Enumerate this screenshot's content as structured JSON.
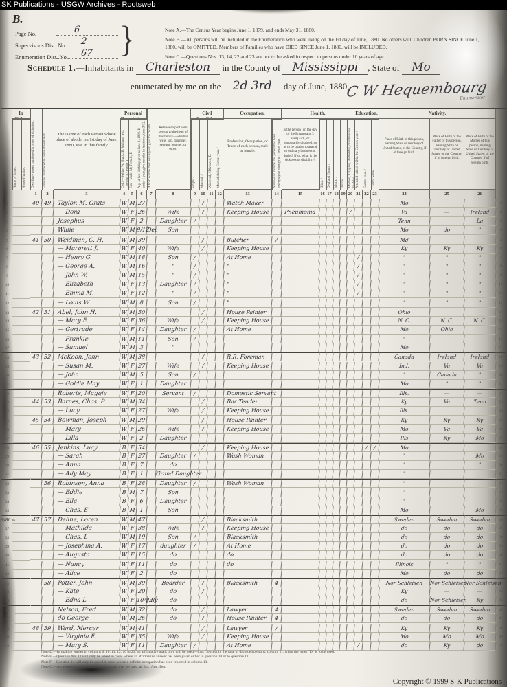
{
  "browser_bar": {
    "title": "SK Publications - USGW Archives - Rootsweb"
  },
  "page_header": {
    "corner_mark": "B.",
    "fields": [
      {
        "label": "Page No.",
        "value": "6"
      },
      {
        "label": "Supervisor's Dist. No.",
        "value": "2"
      },
      {
        "label": "Enumeration Dist. No.",
        "value": "67"
      }
    ],
    "brace": "}",
    "notes": [
      "Note A.—The Census Year begins June 1, 1879, and ends May 31, 1880.",
      "Note B.—All persons will be included in the Enumeration who were living on the 1st day of June, 1880.  No others will.  Children BORN SINCE June 1, 1880, will be OMITTED.  Members of Families who have DIED SINCE June 1, 1880, will be INCLUDED.",
      "Note C.—Questions Nos. 13, 14, 22 and 23 are not to be asked in respect to persons under 10 years of age."
    ],
    "schedule": {
      "prefix": "Schedule 1.",
      "prefix2": "—Inhabitants in",
      "place": "Charleston",
      "mid1": "in the County of",
      "county": "Mississippi",
      "mid2": ", State of",
      "state": "Mo",
      "line2_prefix": "enumerated by me on the",
      "date": "2d 3rd",
      "line2_suffix": "day of June, 1880.",
      "signature": "C W Hequembourg",
      "signature_caption": "Enumerator"
    }
  },
  "table": {
    "groups": {
      "in_cities": "In Cities.",
      "personal_desc": "Personal Description.",
      "civil": "Civil Condition.",
      "occupation": "Occupation.",
      "health": "Health.",
      "education": "Education.",
      "nativity": "Nativity."
    },
    "columns": {
      "street": "Name of Street.",
      "house": "House Number.",
      "dwelling": "Dwelling-houses numbered in order of visitation.",
      "family": "Families numbered in order of visitation.",
      "name": "The Name of each Person whose place of abode, on 1st day of June, 1880, was in this family.",
      "color": "Color—White, W; Black, B; Mulatto, Mu; Chinese, C; Indian, I.",
      "sex": "Sex—Male, M; Female, F.",
      "age": "Age at last birthday prior to June 1, 1880. If under 1 year, give months in fractions, thus 3/12.",
      "month": "If born within the Census year, give the month.",
      "relation": "Relationship of each person to the head of this family—whether wife, son, daughter, servant, boarder, or other.",
      "single": "Single. /",
      "married": "Married. /",
      "widowed": "Widowed, / Divorced, D.",
      "mcy": "Married during Census year. /",
      "occupation": "Profession, Occupation, or Trade of each person, male or female.",
      "unemployed": "Number of months this person has been unemployed during the Census year.",
      "sickness": "Is the person [on the day of the Enumerator's visit] sick, or temporarily disabled, so as to be unable to attend to ordinary business or duties?  If so, what is the sickness or disability?",
      "blind": "Blind. /",
      "deaf": "Deaf and Dumb. /",
      "idiotic": "Idiotic. /",
      "insane": "Insane. /",
      "maimed": "Maimed, Crippled, Bedridden, or otherwise disabled. /",
      "school": "Attended school within the Census year. /",
      "read": "Cannot read. /",
      "write": "Cannot write. /",
      "pob": "Place of Birth of this person, naming State or Territory of United States, or the Country, if of foreign birth.",
      "pob_father": "Place of Birth of the Father of this person, naming State or Territory of United States, or the Country, if of foreign birth.",
      "pob_mother": "Place of Birth of the Mother of this person, naming State or Territory of United States, or the Country, if of foreign birth."
    },
    "col_numbers": [
      "",
      "",
      "",
      "1",
      "2",
      "3",
      "4",
      "5",
      "6",
      "7",
      "8",
      "9",
      "10",
      "11",
      "12",
      "13",
      "14",
      "15",
      "16",
      "17",
      "18",
      "19",
      "20",
      "21",
      "22",
      "23",
      "24",
      "25",
      "26",
      ""
    ],
    "rows": [
      {
        "ln": "1",
        "d": "40",
        "f": "49",
        "name": "Taylor, M. Grats",
        "c": "W",
        "s": "M",
        "a": "27",
        "mr": "/",
        "occ": "Watch Maker",
        "pob": "Mo"
      },
      {
        "ln": "2",
        "name": "— Dora",
        "c": "W",
        "s": "F",
        "a": "26",
        "rel": "Wife",
        "mr": "/",
        "occ": "Keeping House",
        "sick": "Pneumonia",
        "h": "/",
        "pob": "Va",
        "pf": "—",
        "pm": "Ireland"
      },
      {
        "ln": "3",
        "name": "Josephus",
        "c": "W",
        "s": "F",
        "a": "2",
        "rel": "Daughter",
        "sg": "/",
        "pob": "Tenn",
        "pm": "La"
      },
      {
        "ln": "4",
        "name": "Willie",
        "c": "W",
        "s": "M",
        "a": "9/12",
        "mo": "Dec",
        "rel": "Son",
        "pob": "Mo",
        "pf": "do",
        "pm": "\""
      },
      {
        "ln": "5",
        "d": "41",
        "f": "50",
        "name": "Weidman, C. H.",
        "c": "W",
        "s": "M",
        "a": "39",
        "mr": "/",
        "occ": "Butcher",
        "un": "/",
        "pob": "Md",
        "heavy": true
      },
      {
        "ln": "6",
        "name": "— Margrett J.",
        "c": "W",
        "s": "F",
        "a": "40",
        "rel": "Wife",
        "mr": "/",
        "occ": "Keeping House",
        "pob": "Ky",
        "pf": "Ky",
        "pm": "Ky"
      },
      {
        "ln": "7",
        "name": "— Henry G.",
        "c": "W",
        "s": "M",
        "a": "18",
        "rel": "Son",
        "sg": "/",
        "occ": "At Home",
        "sch": "/",
        "pob": "\"",
        "pf": "\"",
        "pm": "\""
      },
      {
        "ln": "8",
        "name": "— George A.",
        "c": "W",
        "s": "M",
        "a": "16",
        "rel": "\"",
        "sg": "/",
        "occ": "\"",
        "sch": "/",
        "pob": "\"",
        "pf": "\"",
        "pm": "\""
      },
      {
        "ln": "9",
        "name": "— John W.",
        "c": "W",
        "s": "M",
        "a": "15",
        "rel": "\"",
        "sg": "/",
        "occ": "\"",
        "sch": "/",
        "pob": "\"",
        "pf": "\"",
        "pm": "\""
      },
      {
        "ln": "10",
        "name": "— Elizabeth",
        "c": "W",
        "s": "F",
        "a": "13",
        "rel": "Daughter",
        "sg": "/",
        "occ": "\"",
        "sch": "/",
        "pob": "\"",
        "pf": "\"",
        "pm": "\""
      },
      {
        "ln": "11",
        "name": "— Emma M.",
        "c": "W",
        "s": "F",
        "a": "12",
        "rel": "\"",
        "sg": "/",
        "occ": "\"",
        "sch": "/",
        "pob": "\"",
        "pf": "\"",
        "pm": "\""
      },
      {
        "ln": "12",
        "name": "— Louis W.",
        "c": "W",
        "s": "M",
        "a": "8",
        "rel": "Son",
        "sg": "/",
        "occ": "\"",
        "pob": "\"",
        "pf": "\"",
        "pm": "\""
      },
      {
        "ln": "13",
        "d": "42",
        "f": "51",
        "name": "Abel, John H.",
        "c": "W",
        "s": "M",
        "a": "50",
        "mr": "/",
        "occ": "House Painter",
        "pob": "Ohio",
        "heavy": true
      },
      {
        "ln": "14",
        "name": "— Mary E.",
        "c": "W",
        "s": "F",
        "a": "36",
        "rel": "Wife",
        "mr": "/",
        "occ": "Keeping House",
        "pob": "N. C.",
        "pf": "N. C.",
        "pm": "N. C."
      },
      {
        "ln": "15",
        "name": "— Gertrude",
        "c": "W",
        "s": "F",
        "a": "14",
        "rel": "Daughter",
        "sg": "/",
        "occ": "At Home",
        "pob": "Mo",
        "pf": "Ohio"
      },
      {
        "ln": "16",
        "name": "— Frankie",
        "c": "W",
        "s": "M",
        "a": "11",
        "rel": "Son",
        "sg": "/",
        "pob": "\"",
        "heavy": true
      },
      {
        "ln": "17",
        "name": "— Samuel",
        "c": "W",
        "s": "M",
        "a": "3",
        "rel": "\"",
        "pob": "Mo"
      },
      {
        "ln": "18",
        "d": "43",
        "f": "52",
        "name": "McKoon, John",
        "c": "W",
        "s": "M",
        "a": "38",
        "mr": "/",
        "occ": "R.R. Foreman",
        "pob": "Canada",
        "pf": "Ireland",
        "pm": "Ireland",
        "heavy": true
      },
      {
        "ln": "19",
        "name": "— Susan M.",
        "c": "W",
        "s": "F",
        "a": "27",
        "rel": "Wife",
        "mr": "/",
        "occ": "Keeping House",
        "pob": "Ind.",
        "pf": "Va",
        "pm": "Va"
      },
      {
        "ln": "20",
        "name": "— John",
        "c": "W",
        "s": "M",
        "a": "5",
        "rel": "Son",
        "sg": "/",
        "pob": "\"",
        "pf": "Canada",
        "pm": "\""
      },
      {
        "ln": "21",
        "name": "— Goldie May",
        "c": "W",
        "s": "F",
        "a": "1",
        "rel": "Daughter",
        "pob": "Mo",
        "pf": "\"",
        "pm": "\""
      },
      {
        "ln": "22",
        "name": "Roberts, Maggie",
        "c": "W",
        "s": "F",
        "a": "20",
        "rel": "Servant",
        "sg": "/",
        "occ": "Domestic Servant",
        "pob": "Ills.",
        "pf": "—",
        "pm": "—",
        "heavy": true
      },
      {
        "ln": "23",
        "d": "44",
        "f": "53",
        "name": "Barnes, Chas. P.",
        "c": "W",
        "s": "M",
        "a": "34",
        "mr": "/",
        "occ": "Bar Tender",
        "pob": "Ky",
        "pf": "Va",
        "pm": "Tenn"
      },
      {
        "ln": "24",
        "name": "— Lucy",
        "c": "W",
        "s": "F",
        "a": "27",
        "rel": "Wife",
        "mr": "/",
        "occ": "Keeping House",
        "pob": "Ills."
      },
      {
        "ln": "25",
        "d": "45",
        "f": "54",
        "name": "Bowman, Joseph",
        "c": "W",
        "s": "M",
        "a": "29",
        "mr": "/",
        "occ": "House Painter",
        "pob": "Ky",
        "pf": "Ky",
        "pm": "Ky",
        "heavy": true
      },
      {
        "ln": "26",
        "name": "— Mary",
        "c": "W",
        "s": "F",
        "a": "26",
        "rel": "Wife",
        "mr": "/",
        "occ": "Keeping House",
        "pob": "Mo",
        "pf": "Va",
        "pm": "Va"
      },
      {
        "ln": "27",
        "name": "— Lilla",
        "c": "W",
        "s": "F",
        "a": "2",
        "rel": "Daughter",
        "pob": "Ills",
        "pf": "Ky",
        "pm": "Mo"
      },
      {
        "ln": "28",
        "d": "46",
        "f": "55",
        "name": "Jenkins, Lucy",
        "c": "B",
        "s": "F",
        "a": "54",
        "mr": "/",
        "occ": "Keeping House",
        "rd": "/",
        "wr": "/",
        "pob": "Mo",
        "heavy": true
      },
      {
        "ln": "29",
        "name": "— Sarah",
        "c": "B",
        "s": "F",
        "a": "27",
        "rel": "Daughter",
        "sg": "/",
        "occ": "Wash Woman",
        "pob": "\"",
        "pm": "Mo"
      },
      {
        "ln": "30",
        "name": "— Anna",
        "c": "B",
        "s": "F",
        "a": "7",
        "rel": "do",
        "pob": "\"",
        "pm": "\""
      },
      {
        "ln": "31",
        "name": "— Ally May",
        "c": "B",
        "s": "F",
        "a": "1",
        "rel": "Grand Daughter",
        "pob": "\""
      },
      {
        "ln": "32",
        "f": "56",
        "name": "Robinson, Anna",
        "c": "B",
        "s": "F",
        "a": "28",
        "rel": "Daughter",
        "sg": "/",
        "occ": "Wash Woman",
        "pob": "\"",
        "heavy": true
      },
      {
        "ln": "33",
        "name": "— Eddie",
        "c": "B",
        "s": "M",
        "a": "7",
        "rel": "Son",
        "pob": "\""
      },
      {
        "ln": "34",
        "name": "— Ella",
        "c": "B",
        "s": "F",
        "a": "6",
        "rel": "Daughter",
        "pob": "\""
      },
      {
        "ln": "35",
        "name": "— Chas. E",
        "c": "B",
        "s": "M",
        "a": "1",
        "rel": "Son",
        "pob": "Mo",
        "pm": "Mo"
      },
      {
        "ln": "36",
        "d": "47",
        "f": "57",
        "name": "Deline, Loren",
        "c": "W",
        "s": "M",
        "a": "47",
        "mr": "/",
        "occ": "Blacksmith",
        "pob": "Sweden",
        "pf": "Sweden",
        "pm": "Sweden",
        "heavy": true,
        "mnote": "9/80"
      },
      {
        "ln": "37",
        "name": "— Mathilda",
        "c": "W",
        "s": "F",
        "a": "38",
        "rel": "Wife",
        "mr": "/",
        "occ": "Keeping House",
        "pob": "do",
        "pf": "do",
        "pm": "do"
      },
      {
        "ln": "38",
        "name": "— Chas. L",
        "c": "W",
        "s": "M",
        "a": "19",
        "rel": "Son",
        "sg": "/",
        "occ": "Blacksmith",
        "pob": "do",
        "pf": "do",
        "pm": "do"
      },
      {
        "ln": "39",
        "name": "— Josephina A.",
        "c": "W",
        "s": "F",
        "a": "17",
        "rel": "daughter",
        "sg": "/",
        "occ": "At Home",
        "pob": "do",
        "pf": "do",
        "pm": "do"
      },
      {
        "ln": "40",
        "name": "— Augusta",
        "c": "W",
        "s": "F",
        "a": "15",
        "rel": "do",
        "occ": "do",
        "pob": "do",
        "pf": "do",
        "pm": "do"
      },
      {
        "ln": "41",
        "name": "— Nancy",
        "c": "W",
        "s": "F",
        "a": "11",
        "rel": "do",
        "occ": "do",
        "pob": "Illinois",
        "pf": "\"",
        "pm": "\""
      },
      {
        "ln": "42",
        "name": "— Alice",
        "c": "W",
        "s": "F",
        "a": "2",
        "rel": "do",
        "pob": "Mo",
        "pf": "do",
        "pm": "do"
      },
      {
        "ln": "43",
        "f": "58",
        "name": "Potter, John",
        "c": "W",
        "s": "M",
        "a": "30",
        "rel": "Boarder",
        "mr": "/",
        "occ": "Blacksmith",
        "un": "4",
        "pob": "Nor Schleisen",
        "pf": "Nor Schleisen",
        "pm": "Nor Schleisen",
        "heavy": true
      },
      {
        "ln": "44",
        "name": "— Kate",
        "c": "W",
        "s": "F",
        "a": "20",
        "rel": "do",
        "mr": "/",
        "pob": "Ky",
        "pf": "—",
        "pm": "—"
      },
      {
        "ln": "45",
        "name": "— Edna L",
        "c": "W",
        "s": "F",
        "a": "10/12",
        "mo": "July",
        "rel": "do",
        "pob": "do",
        "pf": "Nor Schleisen",
        "pm": "Ky"
      },
      {
        "ln": "46",
        "name": "Nelson, Fred",
        "c": "W",
        "s": "M",
        "a": "32",
        "rel": "do",
        "mr": "/",
        "occ": "Lawyer",
        "un": "4",
        "pob": "Sweden",
        "pf": "Sweden",
        "pm": "Sweden",
        "heavy": true
      },
      {
        "ln": "47",
        "name": "do   George",
        "c": "W",
        "s": "M",
        "a": "26",
        "rel": "do",
        "mr": "/",
        "occ": "House Painter",
        "un": "4",
        "pob": "do",
        "pf": "do",
        "pm": "do"
      },
      {
        "ln": "48",
        "d": "48",
        "f": "59",
        "name": "Ward, Mercer",
        "c": "W",
        "s": "M",
        "a": "41",
        "mr": "/",
        "occ": "Lawyer",
        "un": "/",
        "pob": "Ky",
        "pf": "Ky",
        "pm": "Ky",
        "heavy": true
      },
      {
        "ln": "49",
        "name": "— Virginia E.",
        "c": "W",
        "s": "F",
        "a": "35",
        "rel": "Wife",
        "mr": "/",
        "occ": "Keeping House",
        "pob": "Mo",
        "pf": "Mo",
        "pm": "Mo"
      },
      {
        "ln": "50",
        "name": "— Mary S.",
        "c": "W",
        "s": "F",
        "a": "11",
        "rel": "Daughter",
        "sg": "/",
        "occ": "At Home",
        "sch": "/",
        "pob": "do",
        "pf": "Ky",
        "pm": "do"
      }
    ]
  },
  "footnotes": [
    "Note D.—In making entries in columns 6, 10, 11, 12, 16 to 23, an affirmative mark only will be used—thus /, except in the case of divorced persons, column 11, when the letter \"D\" is to be used.",
    "Note E.—Question No. 12 will only be asked in cases where an affirmative answer has been given either to question 10 or to question 11.",
    "Note F.—Question 14 will only be asked in cases where a definite occupation has been reported in column 13.",
    "Note G.—An abbreviation in the names of months may be used, as Jan., Apr., Dec."
  ],
  "copyright": "Copyright © 1999 S-K Publications"
}
